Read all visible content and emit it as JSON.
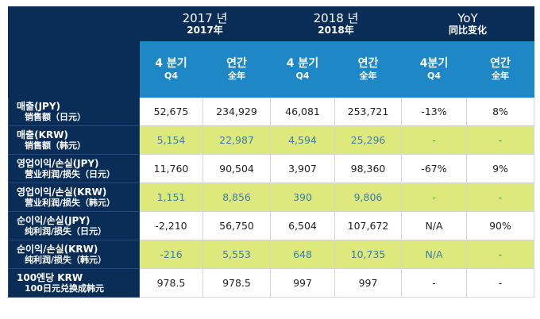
{
  "header": {
    "y2017_ko": "2017 년",
    "y2017_zh": "2017年",
    "y2018_ko": "2018 년",
    "y2018_zh": "2018年",
    "yoy_en": "YoY",
    "yoy_zh": "同比变化"
  },
  "subheaders": [
    {
      "ko": "4 분기",
      "zh": "Q4"
    },
    {
      "ko": "연간",
      "zh": "全年"
    },
    {
      "ko": "4 분기",
      "zh": "Q4"
    },
    {
      "ko": "연간",
      "zh": "全年"
    },
    {
      "ko": "4분기",
      "zh": "Q4"
    },
    {
      "ko": "연간",
      "zh": "全年"
    }
  ],
  "rows": [
    {
      "ko": "매출(JPY)",
      "zh": "销售额（日元）",
      "values": [
        "52,675",
        "234,929",
        "46,081",
        "253,721",
        "-13%",
        "8%"
      ]
    },
    {
      "ko": "매출(KRW)",
      "zh": "销售额（韩元）",
      "values": [
        "5,154",
        "22,987",
        "4,594",
        "25,296",
        "-",
        "-"
      ]
    },
    {
      "ko": "영업이익/손실(JPY)",
      "zh": "营业利润/损失（日元）",
      "values": [
        "11,760",
        "90,504",
        "3,907",
        "98,360",
        "-67%",
        "9%"
      ]
    },
    {
      "ko": "영업이익/손실(KRW)",
      "zh": "营业利润/损失（韩元）",
      "values": [
        "1,151",
        "8,856",
        "390",
        "9,806",
        "-",
        "-"
      ]
    },
    {
      "ko": "순이익/손실(JPY)",
      "zh": "纯利润/损失（日元）",
      "values": [
        "-2,210",
        "56,750",
        "6,504",
        "107,672",
        "N/A",
        "90%"
      ]
    },
    {
      "ko": "순이익/손실(KRW)",
      "zh": "纯利润/损失（韩元）",
      "values": [
        "-216",
        "5,553",
        "648",
        "10,735",
        "N/A",
        "-"
      ]
    },
    {
      "ko": "100엔당 KRW",
      "zh": "100日元兑换成韩元",
      "values": [
        "978.5",
        "978.5",
        "997",
        "997",
        "-",
        "-"
      ]
    }
  ]
}
